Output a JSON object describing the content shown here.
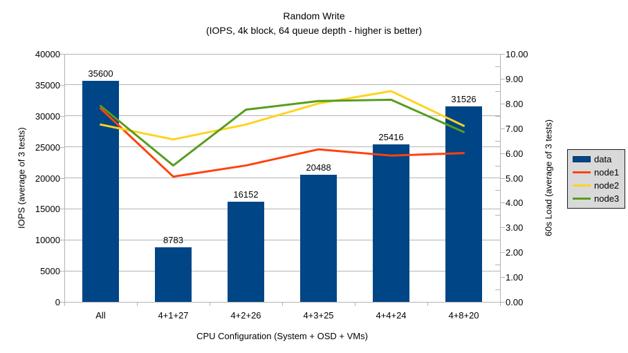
{
  "title": {
    "line1": "Random Write",
    "line2": "(IOPS, 4k block, 64 queue depth - higher is better)"
  },
  "axes": {
    "left": {
      "title": "IOPS (average of 3 tests)",
      "tick_labels": [
        "40000",
        "35000",
        "30000",
        "25000",
        "20000",
        "15000",
        "10000",
        "5000",
        "0"
      ]
    },
    "right": {
      "title": "60s Load (average of 3 tests)",
      "tick_labels": [
        "10.00",
        "9.00",
        "8.00",
        "7.00",
        "6.00",
        "5.00",
        "4.00",
        "3.00",
        "2.00",
        "1.00",
        "0.00"
      ]
    },
    "x": {
      "title": "CPU Configuration (System + OSD + VMs)"
    }
  },
  "legend": {
    "items": [
      {
        "label": "data",
        "color": "#004586",
        "type": "bar"
      },
      {
        "label": "node1",
        "color": "#FF420E",
        "type": "line"
      },
      {
        "label": "node2",
        "color": "#FFD320",
        "type": "line"
      },
      {
        "label": "node3",
        "color": "#579D1C",
        "type": "line"
      }
    ]
  },
  "chart_data": {
    "type": "bar",
    "subtype": "bar-and-line combo, lines on secondary axis",
    "title": "Random Write (IOPS, 4k block, 64 queue depth - higher is better)",
    "categories": [
      "All",
      "4+1+27",
      "4+2+26",
      "4+3+25",
      "4+4+24",
      "4+8+20"
    ],
    "bar_series": {
      "name": "data",
      "axis": "left",
      "color": "#004586",
      "values": [
        35600,
        8783,
        16152,
        20488,
        25416,
        31526
      ],
      "data_labels": [
        "35600",
        "8783",
        "16152",
        "20488",
        "25416",
        "31526"
      ]
    },
    "line_series": [
      {
        "name": "node1",
        "axis": "right",
        "color": "#FF420E",
        "values": [
          7.8,
          5.05,
          5.5,
          6.15,
          5.9,
          6.0
        ]
      },
      {
        "name": "node2",
        "axis": "right",
        "color": "#FFD320",
        "values": [
          7.15,
          6.55,
          7.15,
          8.0,
          8.5,
          7.1
        ]
      },
      {
        "name": "node3",
        "axis": "right",
        "color": "#579D1C",
        "values": [
          7.9,
          5.5,
          7.75,
          8.1,
          8.15,
          6.85
        ]
      }
    ],
    "xlabel": "CPU Configuration (System + OSD + VMs)",
    "ylabel_left": "IOPS (average of 3 tests)",
    "ylabel_right": "60s Load (average of 3 tests)",
    "ylim_left": [
      0,
      40000
    ],
    "ylim_right": [
      0,
      10
    ],
    "grid": "horizontal major gridlines every 5000 (left axis)",
    "legend_position": "right"
  },
  "colors": {
    "background": "#ffffff",
    "grid": "#b3b3b3",
    "axis": "#b3b3b3",
    "text": "#000000",
    "legend_bg": "#d9d9d9",
    "legend_border": "#1a1a1a"
  }
}
